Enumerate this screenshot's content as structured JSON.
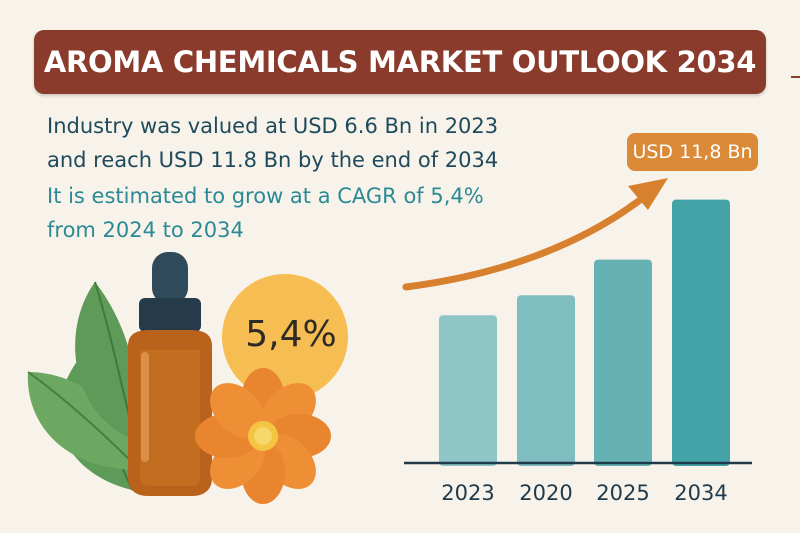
{
  "header": {
    "title": "AROMA CHEMICALS MARKET OUTLOOK 2034"
  },
  "summary": {
    "line1": "Industry was valued at USD 6.6 Bn in 2023",
    "line2": "and reach USD 11.8 Bn by the end of 2034",
    "line3": "It is estimated to grow at a CAGR of 5,4%",
    "line4": "from 2024 to 2034"
  },
  "badge": {
    "cagr": "5,4%"
  },
  "icons": [
    "dropper-bottle-icon",
    "leaf-icon",
    "flower-icon",
    "trend-arrow-icon"
  ],
  "colors": {
    "banner": "#8b3b2c",
    "text_dark": "#1e4a5c",
    "text_teal": "#2b8a95",
    "accent_orange": "#db8a37",
    "badge_circle": "#f6bd52",
    "bar_light": "#8ec6c8",
    "bar_dark": "#43a3a7"
  },
  "chart_data": {
    "type": "bar",
    "categories": [
      "2023",
      "2020",
      "2025",
      "2034"
    ],
    "values": [
      6.6,
      7.5,
      9.1,
      11.8
    ],
    "annotation": "USD 11,8 Bn",
    "ylim": [
      0,
      12.5
    ],
    "grid": false,
    "legend": "none",
    "trend_arrow": true
  }
}
